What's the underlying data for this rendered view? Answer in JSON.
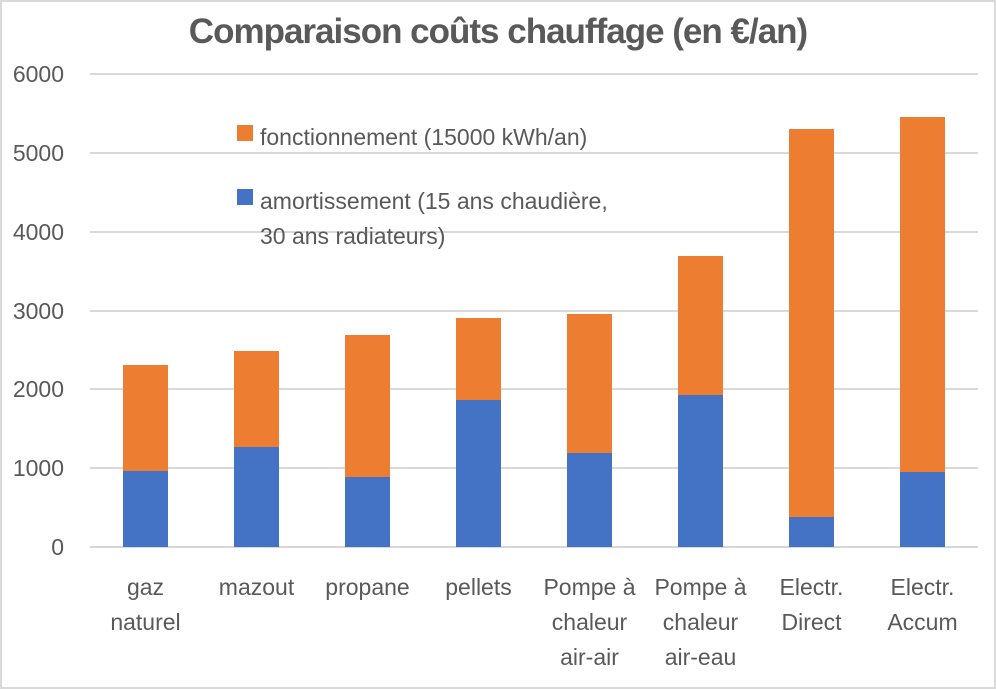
{
  "colors": {
    "fonctionnement": "#ED7D31",
    "amortissement": "#4472C4",
    "text": "#595959",
    "gridline": "#D9D9D9"
  },
  "legend": {
    "items": [
      {
        "key": "fonctionnement",
        "label": "fonctionnement (15000 kWh/an)",
        "color": "#ED7D31"
      },
      {
        "key": "amortissement",
        "label": "amortissement (15 ans chaudière, 30 ans radiateurs)",
        "label_lines": [
          "amortissement (15 ans chaudière,",
          "30 ans radiateurs)"
        ],
        "color": "#4472C4"
      }
    ]
  },
  "chart_data": {
    "type": "bar",
    "stacked": true,
    "title": "Comparaison coûts chauffage (en €/an)",
    "categories": [
      "gaz naturel",
      "mazout",
      "propane",
      "pellets",
      "Pompe à chaleur air-air",
      "Pompe à chaleur air-eau",
      "Electr. Direct",
      "Electr. Accum"
    ],
    "series": [
      {
        "name": "amortissement (15 ans chaudière, 30 ans radiateurs)",
        "key": "amortissement",
        "color": "#4472C4",
        "values": [
          970,
          1270,
          890,
          1870,
          1190,
          1930,
          380,
          950
        ]
      },
      {
        "name": "fonctionnement (15000 kWh/an)",
        "key": "fonctionnement",
        "color": "#ED7D31",
        "values": [
          1340,
          1210,
          1800,
          1040,
          1770,
          1760,
          4920,
          4510
        ]
      }
    ],
    "totals": [
      2310,
      2480,
      2690,
      2910,
      2960,
      3690,
      5300,
      5460
    ],
    "xlabel": "",
    "ylabel": "",
    "ylim": [
      0,
      6000
    ],
    "yticks": [
      0,
      1000,
      2000,
      3000,
      4000,
      5000,
      6000
    ],
    "grid": true,
    "legend_position": "top-left-inside"
  }
}
